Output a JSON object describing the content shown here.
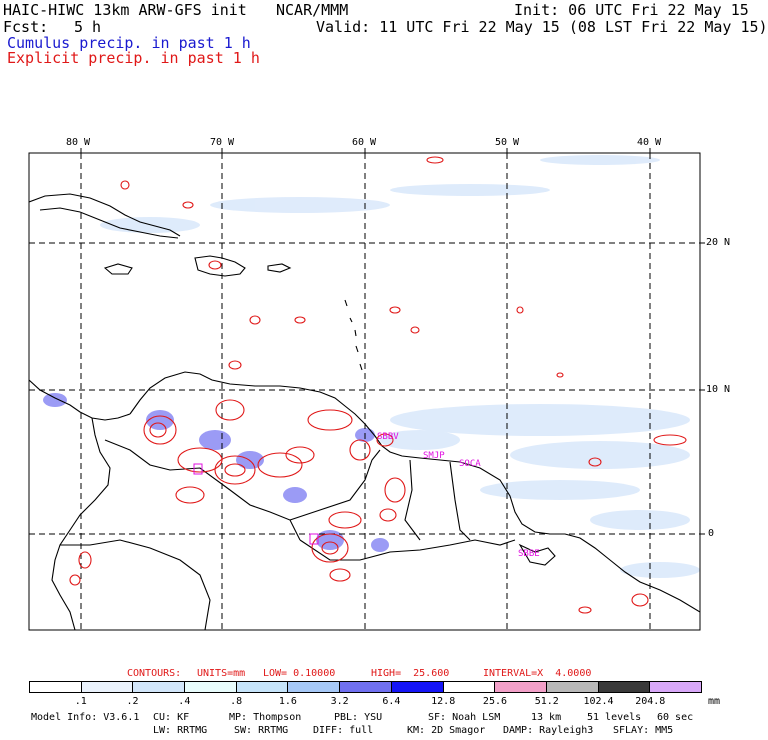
{
  "header": {
    "model": "HAIC-HIWC 13km ARW-GFS init",
    "org": "NCAR/MMM",
    "init": "Init: 06 UTC Fri 22 May 15",
    "fcst_label": "Fcst:",
    "fcst_value": "5 h",
    "valid": "Valid: 11 UTC Fri 22 May 15 (08 LST Fri 22 May 15)",
    "cumulus": "Cumulus precip. in past 1 h",
    "explicit": "Explicit precip. in past 1 h"
  },
  "map": {
    "lon_labels": [
      "80 W",
      "70 W",
      "60 W",
      "50 W",
      "40 W"
    ],
    "lat_labels": [
      "20 N",
      "10 N",
      "0"
    ],
    "stations": [
      "SBBV",
      "SMJP",
      "SOCA",
      "SBBE"
    ],
    "colors": {
      "coast": "#000000",
      "explicit": "#e01818",
      "cumulus": "#4a4af0",
      "station": "#e010e0"
    }
  },
  "contours": {
    "label": "CONTOURS:",
    "units": "UNITS=mm",
    "low": "LOW= 0.10000",
    "high": "HIGH=  25.600",
    "interval": "INTERVAL=X  4.0000"
  },
  "colorbar": {
    "ticks": [
      ".1",
      ".2",
      ".4",
      ".8",
      "1.6",
      "3.2",
      "6.4",
      "12.8",
      "25.6",
      "51.2",
      "102.4",
      "204.8"
    ],
    "colors": [
      "#ffffff",
      "#eaf2fc",
      "#d2e6fa",
      "#e8fcfc",
      "#c6e4fa",
      "#a6c8f6",
      "#7070f0",
      "#1414f6",
      "#ffffff",
      "#f2a0c8",
      "#b8b8b8",
      "#3a3a3a",
      "#d8a8f8"
    ],
    "units": "mm"
  },
  "footer": {
    "line1": [
      "Model Info: V3.6.1",
      "CU: KF",
      "MP: Thompson",
      "PBL: YSU",
      "SF: Noah LSM",
      "13 km",
      "51 levels",
      "60 sec"
    ],
    "line2": [
      "LW: RRTMG",
      "SW: RRTMG",
      "DIFF: full",
      "KM: 2D Smagor",
      "DAMP: Rayleigh3",
      "SFLAY: MM5"
    ]
  }
}
